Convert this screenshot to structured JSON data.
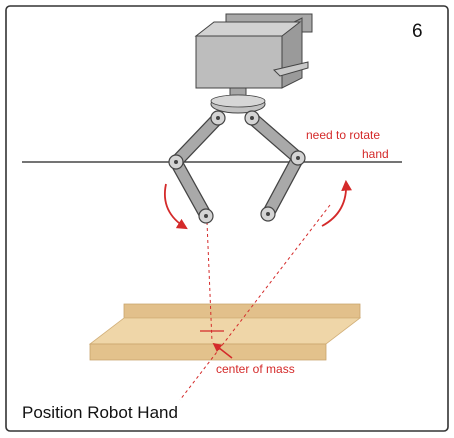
{
  "figure": {
    "panel_number": "6",
    "caption": "Position Robot Hand",
    "annotations": {
      "rotate_line1": "need to rotate",
      "rotate_line2": "hand",
      "center_of_mass": "center of mass"
    }
  },
  "colors": {
    "frame": "#333333",
    "robot_fill": "#bdbdbd",
    "robot_dark": "#8f8f8f",
    "robot_stroke": "#444444",
    "annotation_red": "#d42a2a",
    "wood_light": "#efd6a8",
    "wood_dark": "#e0bd82",
    "horizon_line": "#222222"
  }
}
